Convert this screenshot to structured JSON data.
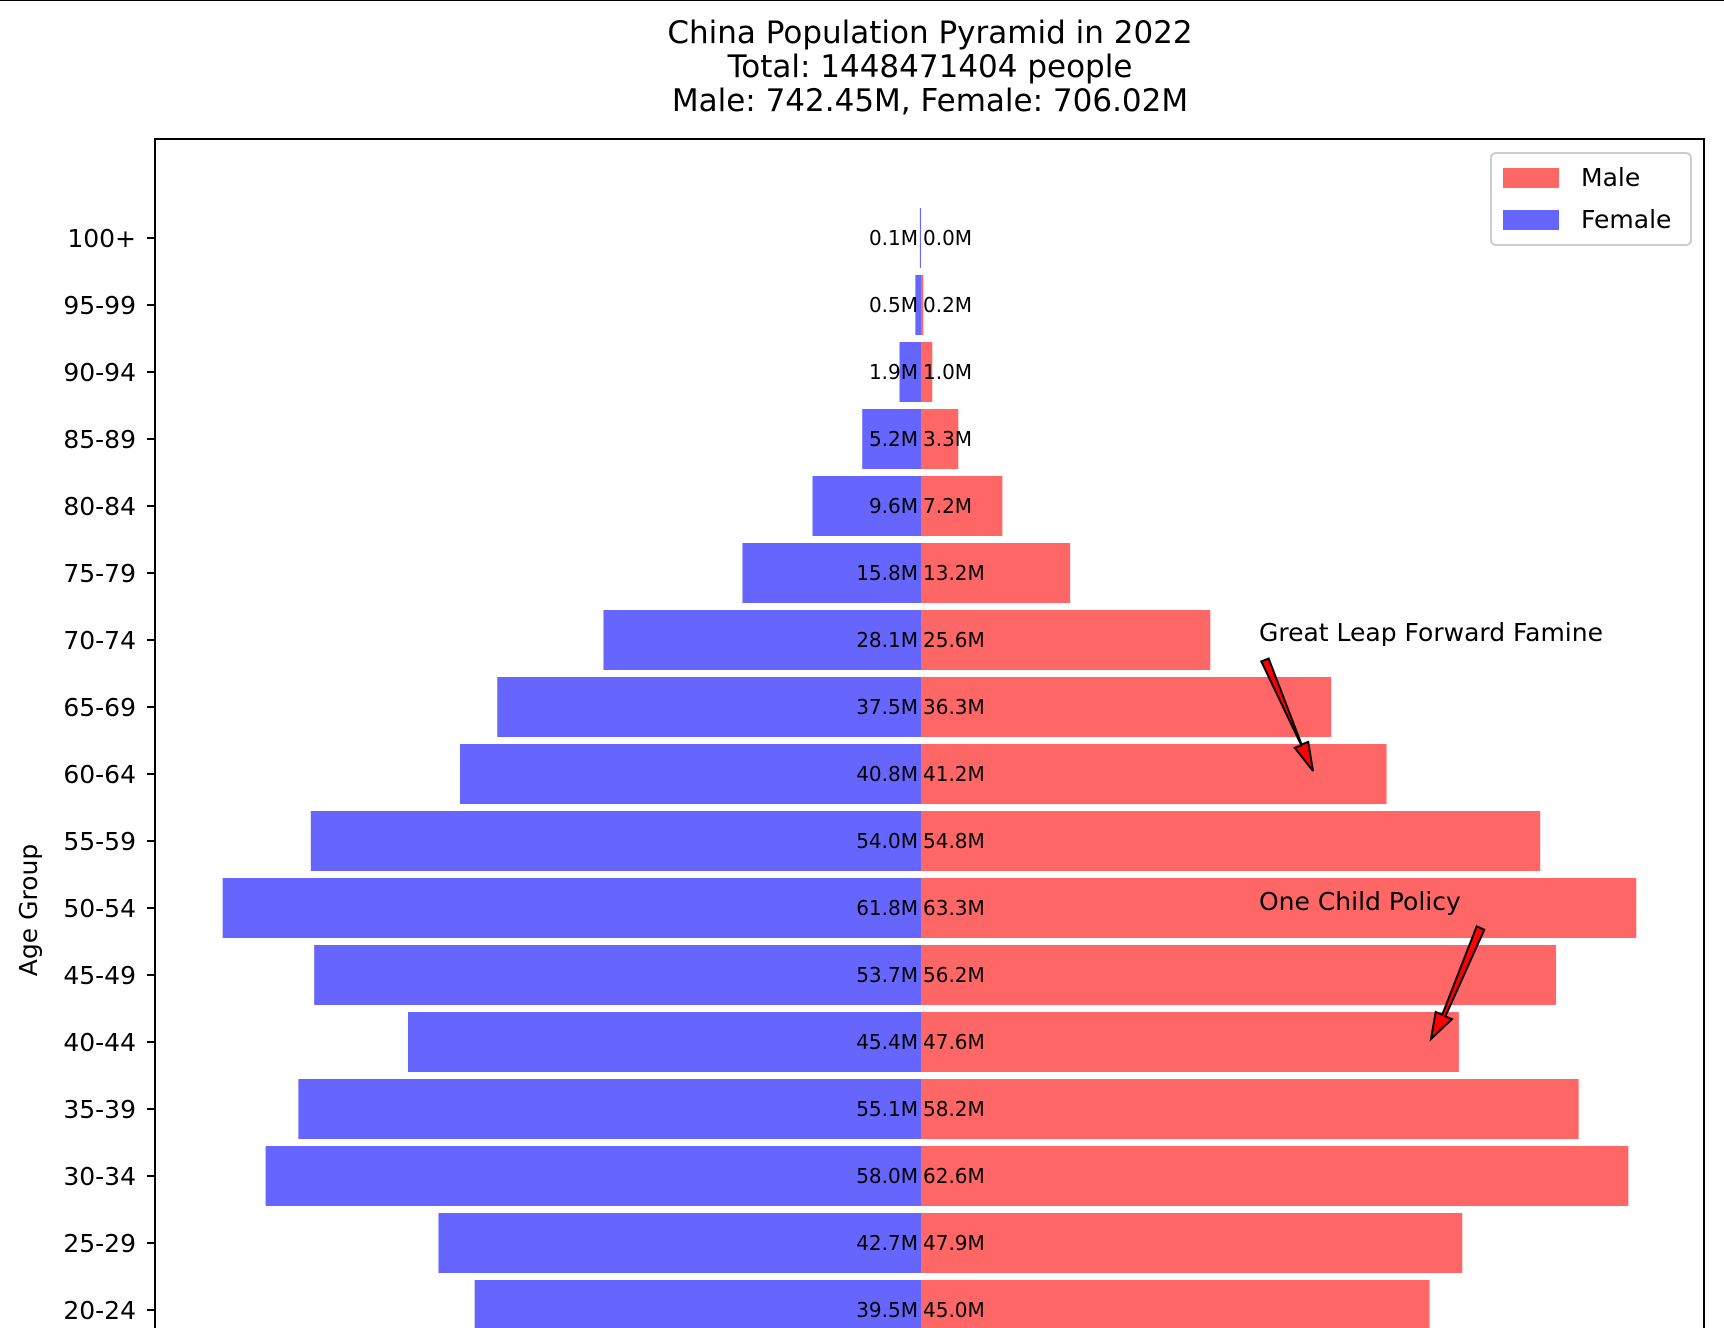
{
  "chart_data": {
    "type": "bar",
    "orientation": "horizontal-pyramid",
    "title": "China Population Pyramid in 2022",
    "subtitle_lines": [
      "Total: 1448471404 people",
      "Male: 742.45M, Female: 706.02M"
    ],
    "ylabel": "Age Group",
    "xlabel": "",
    "categories": [
      "100+",
      "95-99",
      "90-94",
      "85-89",
      "80-84",
      "75-79",
      "70-74",
      "65-69",
      "60-64",
      "55-59",
      "50-54",
      "45-49",
      "40-44",
      "35-39",
      "30-34",
      "25-29",
      "20-24"
    ],
    "series": [
      {
        "name": "Male",
        "color": "#ff6666",
        "side": "right",
        "values": [
          0.0,
          0.2,
          1.0,
          3.3,
          7.2,
          13.2,
          25.6,
          36.3,
          41.2,
          54.8,
          63.3,
          56.2,
          47.6,
          58.2,
          62.6,
          47.9,
          45.0
        ],
        "labels": [
          "0.0M",
          "0.2M",
          "1.0M",
          "3.3M",
          "7.2M",
          "13.2M",
          "25.6M",
          "36.3M",
          "41.2M",
          "54.8M",
          "63.3M",
          "56.2M",
          "47.6M",
          "58.2M",
          "62.6M",
          "47.9M",
          "45.0M"
        ]
      },
      {
        "name": "Female",
        "color": "#6666ff",
        "side": "left",
        "values": [
          0.1,
          0.5,
          1.9,
          5.2,
          9.6,
          15.8,
          28.1,
          37.5,
          40.8,
          54.0,
          61.8,
          53.7,
          45.4,
          55.1,
          58.0,
          42.7,
          39.5
        ],
        "labels": [
          "0.1M",
          "0.5M",
          "1.9M",
          "5.2M",
          "9.6M",
          "15.8M",
          "28.1M",
          "37.5M",
          "40.8M",
          "54.0M",
          "61.8M",
          "53.7M",
          "45.4M",
          "55.1M",
          "58.0M",
          "42.7M",
          "39.5M"
        ]
      }
    ],
    "units": "millions",
    "annotations": [
      {
        "text": "Great Leap Forward Famine",
        "points_to_age_group": "60-64",
        "arrow_color": "#ff0000"
      },
      {
        "text": "One Child Policy",
        "points_to_age_group": "40-44",
        "arrow_color": "#ff0000"
      }
    ],
    "legend": {
      "placement": "top-right",
      "entries": [
        "Male",
        "Female"
      ]
    },
    "grid": false
  }
}
